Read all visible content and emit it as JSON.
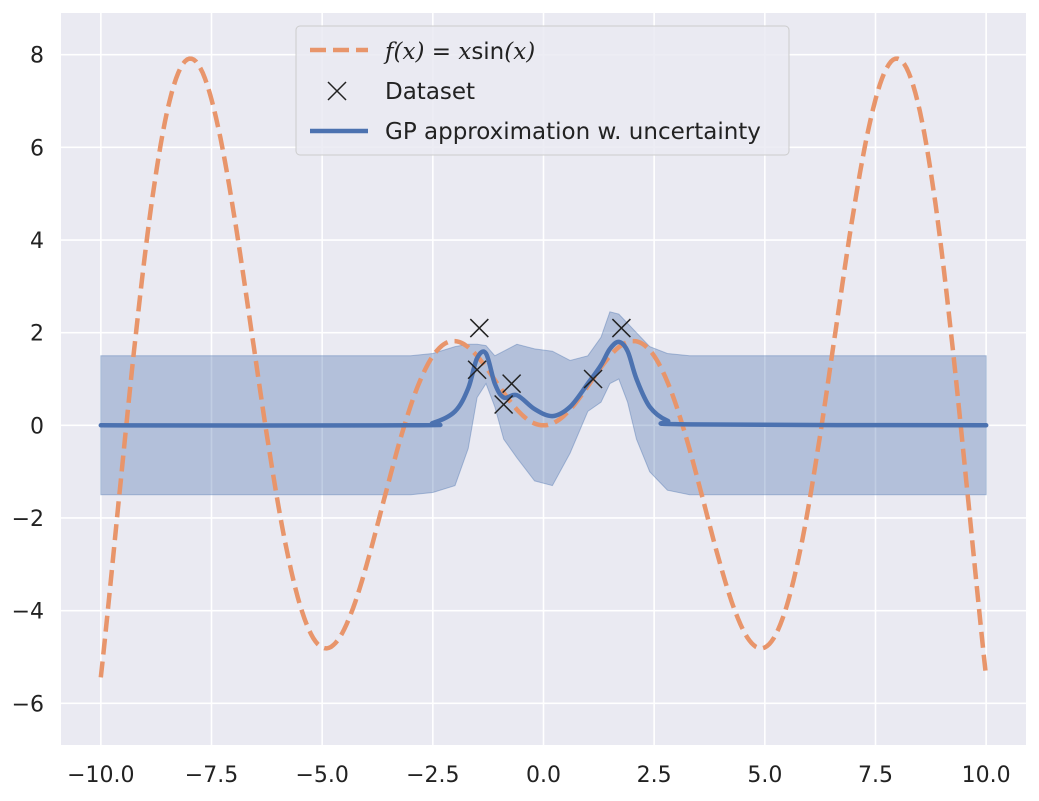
{
  "chart_data": {
    "type": "line",
    "xlim": [
      -10.9,
      10.9
    ],
    "ylim": [
      -6.9,
      8.9
    ],
    "xticks": [
      -10.0,
      -7.5,
      -5.0,
      -2.5,
      0.0,
      2.5,
      5.0,
      7.5,
      10.0
    ],
    "xtick_labels": [
      "−10.0",
      "−7.5",
      "−5.0",
      "−2.5",
      "0.0",
      "2.5",
      "5.0",
      "7.5",
      "10.0"
    ],
    "yticks": [
      -6,
      -4,
      -2,
      0,
      2,
      4,
      6,
      8
    ],
    "ytick_labels": [
      "−6",
      "−4",
      "−2",
      "0",
      "2",
      "4",
      "6",
      "8"
    ],
    "grid": true,
    "legend_position": "top-center",
    "series": [
      {
        "name": "f(x) = x sin(x)",
        "kind": "dashed-line",
        "color": "#e8956b",
        "x_range": [
          -10,
          10
        ],
        "function": "x*sin(x)"
      },
      {
        "name": "Dataset",
        "kind": "scatter",
        "marker": "x",
        "color": "#222222",
        "x": [
          -1.45,
          -1.5,
          -0.9,
          -0.72,
          1.12,
          1.76
        ],
        "y": [
          2.1,
          1.2,
          0.45,
          0.9,
          1.0,
          2.1
        ]
      },
      {
        "name": "GP approximation w. uncertainty",
        "kind": "line-with-band",
        "color": "#4c72b0",
        "band_color": "#4c72b0",
        "x": [
          -10.0,
          -3.0,
          -2.5,
          -2.0,
          -1.7,
          -1.5,
          -1.3,
          -1.1,
          -0.9,
          -0.6,
          -0.2,
          0.2,
          0.6,
          1.0,
          1.3,
          1.5,
          1.7,
          1.9,
          2.1,
          2.4,
          2.8,
          3.3,
          10.0
        ],
        "mean": [
          0.0,
          0.0,
          0.05,
          0.3,
          0.8,
          1.45,
          1.55,
          0.9,
          0.6,
          0.65,
          0.35,
          0.2,
          0.4,
          0.9,
          1.3,
          1.65,
          1.8,
          1.6,
          1.0,
          0.4,
          0.1,
          0.02,
          0.0
        ],
        "lower": [
          -1.5,
          -1.5,
          -1.45,
          -1.3,
          -0.5,
          0.6,
          0.9,
          0.4,
          -0.3,
          -0.7,
          -1.2,
          -1.3,
          -0.6,
          0.3,
          0.5,
          0.9,
          1.0,
          0.5,
          -0.3,
          -1.0,
          -1.4,
          -1.5,
          -1.5
        ],
        "upper": [
          1.5,
          1.5,
          1.55,
          1.7,
          1.75,
          1.75,
          1.72,
          1.5,
          1.6,
          1.75,
          1.65,
          1.6,
          1.4,
          1.5,
          1.9,
          2.45,
          2.4,
          2.2,
          2.0,
          1.7,
          1.55,
          1.5,
          1.5
        ]
      }
    ]
  },
  "legend": {
    "f_label_prefix": "f",
    "f_label_arg": "(x) = x",
    "f_label_fn": "sin",
    "f_label_tail": "(x)",
    "dataset_label": "Dataset",
    "gp_label": "GP approximation w. uncertainty"
  },
  "colors": {
    "plot_background": "#eaeaf2",
    "grid": "#ffffff"
  }
}
